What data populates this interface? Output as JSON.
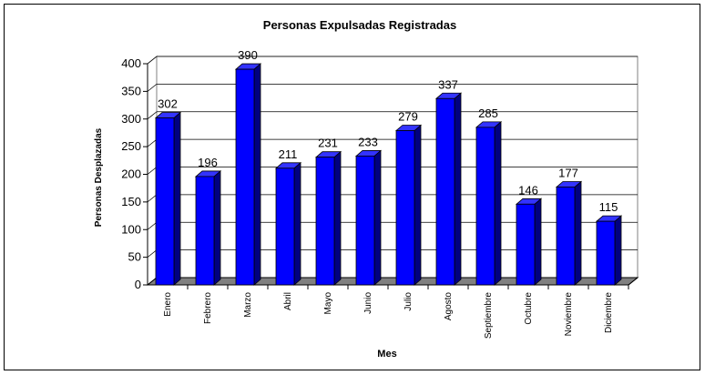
{
  "chart_data": {
    "type": "bar3d",
    "title": "Personas Expulsadas Registradas",
    "x_label": "Mes",
    "y_label": "Personas Desplazadas",
    "categories": [
      "Enero",
      "Febrero",
      "Marzo",
      "Abril",
      "Mayo",
      "Junio",
      "Julio",
      "Agosto",
      "Septiembre",
      "Octubre",
      "Noviembre",
      "Diciembre"
    ],
    "values": [
      302,
      196,
      390,
      211,
      231,
      233,
      279,
      337,
      285,
      146,
      177,
      115
    ],
    "color": "#0000ff",
    "ylim": [
      0,
      400
    ],
    "yticks": [
      0,
      50,
      100,
      150,
      200,
      250,
      300,
      350,
      400
    ],
    "grid": true
  }
}
